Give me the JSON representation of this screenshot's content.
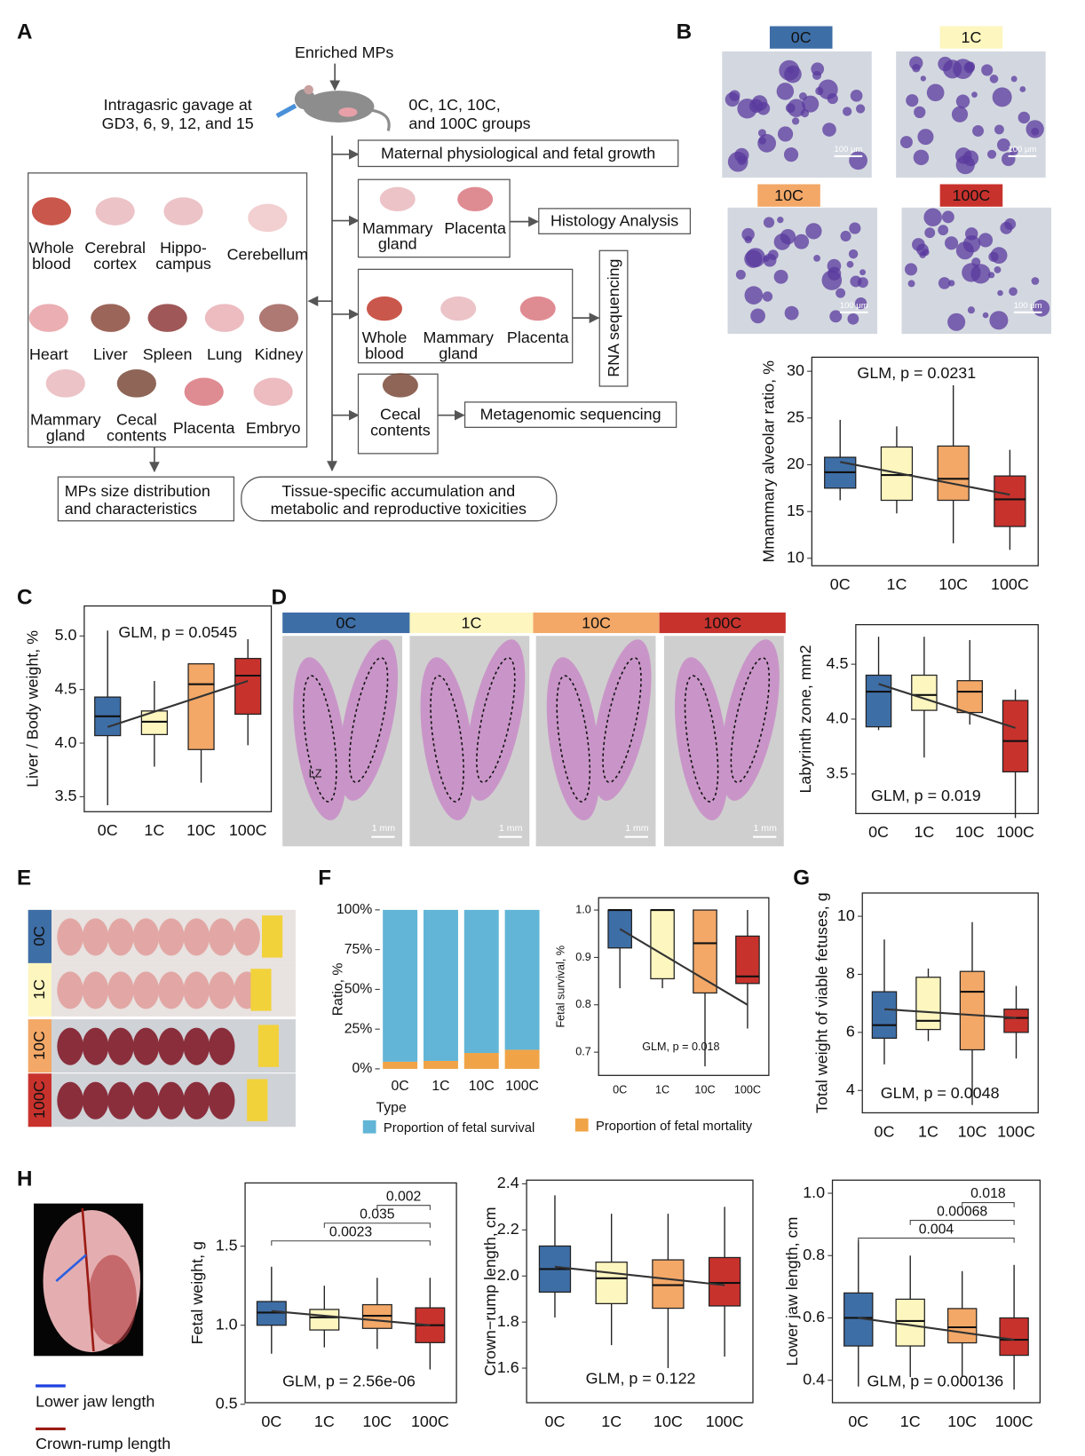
{
  "panel_labels": [
    "A",
    "B",
    "C",
    "D",
    "E",
    "F",
    "G",
    "H"
  ],
  "flow": {
    "input": "Enriched MPs",
    "dosing": [
      "Intragasric gavage at",
      "GD3, 6, 9, 12, and 15"
    ],
    "groups": [
      "0C, 1C, 10C,",
      "and 100C groups"
    ],
    "maternal": "Maternal physiological and fetal growth",
    "tissues": [
      [
        "Whole",
        "blood"
      ],
      [
        "Cerebral",
        "cortex"
      ],
      [
        "Hippo-",
        "campus"
      ],
      [
        "Cerebellum"
      ],
      [
        "Heart"
      ],
      [
        "Liver"
      ],
      [
        "Spleen"
      ],
      [
        "Lung"
      ],
      [
        "Kidney"
      ],
      [
        "Mammary",
        "gland"
      ],
      [
        "Cecal",
        "contents"
      ],
      [
        "Placenta"
      ],
      [
        "Embryo"
      ]
    ],
    "histology_tissues": [
      [
        "Mammary",
        "gland"
      ],
      [
        "Placenta"
      ]
    ],
    "histology": "Histology Analysis",
    "rna_tissues": [
      [
        "Whole",
        "blood"
      ],
      [
        "Mammary",
        "gland"
      ],
      [
        "Placenta"
      ]
    ],
    "rna": "RNA sequencing",
    "meta_tissues": [
      [
        "Cecal",
        "contents"
      ]
    ],
    "meta": "Metagenomic sequencing",
    "size": [
      "MPs size distribution",
      "and characteristics"
    ],
    "tox": [
      "Tissue-specific accumulation and",
      "metabolic and reproductive toxicities"
    ]
  },
  "micrographs": {
    "groups": [
      "0C",
      "1C",
      "10C",
      "100C"
    ],
    "scale_bar": "100 μm"
  },
  "placenta": {
    "groups": [
      "0C",
      "1C",
      "10C",
      "100C"
    ],
    "zone": "LZ",
    "scale_bar": "1 mm"
  },
  "litters": {
    "groups": [
      "0C",
      "1C",
      "10C",
      "100C"
    ]
  },
  "embryo": {
    "legend": [
      "Lower jaw length",
      "Crown-rump length"
    ]
  },
  "group_colors": [
    "#3e6ea6",
    "#fdf6bf",
    "#f3a868",
    "#c8322d"
  ],
  "chart_data": [
    {
      "type": "box",
      "ylabel": "Mmammary alveolar ratio, %",
      "categories": [
        "0C",
        "1C",
        "10C",
        "100C"
      ],
      "boxes": [
        [
          16.2,
          17.5,
          19.2,
          20.8,
          24.8
        ],
        [
          14.8,
          16.2,
          18.9,
          21.9,
          24.1
        ],
        [
          11.6,
          16.2,
          18.5,
          22.0,
          28.5
        ],
        [
          10.9,
          13.4,
          16.3,
          18.8,
          21.6
        ]
      ],
      "trend": [
        20.3,
        16.8
      ],
      "annotation": "GLM, p = 0.0231",
      "ylim": [
        9.2,
        31.5
      ],
      "yticks": [
        10,
        15,
        20,
        25,
        30
      ]
    },
    {
      "type": "box",
      "ylabel": "Liver / Body weight, %",
      "categories": [
        "0C",
        "1C",
        "10C",
        "100C"
      ],
      "boxes": [
        [
          3.42,
          4.07,
          4.25,
          4.43,
          5.05
        ],
        [
          3.78,
          4.08,
          4.2,
          4.3,
          4.58
        ],
        [
          3.63,
          3.94,
          4.55,
          4.74,
          4.74
        ],
        [
          3.98,
          4.27,
          4.63,
          4.79,
          4.97
        ]
      ],
      "trend": [
        4.15,
        4.58
      ],
      "annotation": "GLM, p = 0.0545",
      "ylim": [
        3.36,
        5.28
      ],
      "yticks": [
        {
          "value": 3.5,
          "label": "3.5"
        },
        {
          "value": 4,
          "label": "4.0"
        },
        {
          "value": 4.5,
          "label": "4.5"
        },
        {
          "value": 5,
          "label": "5.0"
        }
      ]
    },
    {
      "type": "box",
      "ylabel": "Labyrinth zone, mm2",
      "categories": [
        "0C",
        "1C",
        "10C",
        "100C"
      ],
      "boxes": [
        [
          3.9,
          3.93,
          4.25,
          4.4,
          4.75
        ],
        [
          3.65,
          4.08,
          4.22,
          4.4,
          4.75
        ],
        [
          3.95,
          4.06,
          4.25,
          4.35,
          4.72
        ],
        [
          3.1,
          3.52,
          3.8,
          4.17,
          4.27
        ]
      ],
      "trend": [
        4.32,
        3.92
      ],
      "annotation": "GLM, p = 0.019",
      "ylim": [
        3.14,
        4.86
      ],
      "yticks": [
        {
          "value": 3.5,
          "label": "3.5"
        },
        {
          "value": 4,
          "label": "4.0"
        },
        {
          "value": 4.5,
          "label": "4.5"
        }
      ]
    },
    {
      "type": "stacked_bar",
      "ylabel": "Ratio, %",
      "xlabel": "Type",
      "categories": [
        "0C",
        "1C",
        "10C",
        "100C"
      ],
      "series": [
        {
          "name": "Proportion of fetal survival",
          "color": "#62b5d6",
          "values": [
            95.5,
            95,
            90,
            88
          ]
        },
        {
          "name": "Proportion of fetal mortality",
          "color": "#f0a447",
          "values": [
            4.5,
            5,
            10,
            12
          ]
        }
      ],
      "ylim": [
        0,
        100
      ],
      "yticks": [
        {
          "value": 0,
          "label": "0%"
        },
        {
          "value": 25,
          "label": "25%"
        },
        {
          "value": 50,
          "label": "50%"
        },
        {
          "value": 75,
          "label": "75%"
        },
        {
          "value": 100,
          "label": "100%"
        }
      ]
    },
    {
      "type": "box",
      "ylabel": "Fetal survival, %",
      "categories": [
        "0C",
        "1C",
        "10C",
        "100C"
      ],
      "boxes": [
        [
          0.835,
          0.92,
          1,
          1,
          1
        ],
        [
          0.835,
          0.855,
          1,
          1,
          1
        ],
        [
          0.67,
          0.825,
          0.93,
          1,
          1
        ],
        [
          0.75,
          0.845,
          0.86,
          0.945,
          1
        ]
      ],
      "trend": [
        0.96,
        0.8
      ],
      "annotation": "GLM, p = 0.018",
      "ylim": [
        0.651,
        1.026
      ],
      "yticks": [
        0.7,
        0.8,
        0.9,
        {
          "value": 1,
          "label": "1.0"
        }
      ]
    },
    {
      "type": "box",
      "ylabel": "Total weight of viable fetuses, g",
      "categories": [
        "0C",
        "1C",
        "10C",
        "100C"
      ],
      "boxes": [
        [
          4.9,
          5.8,
          6.25,
          7.4,
          9.2
        ],
        [
          5.7,
          6.1,
          6.4,
          7.9,
          8.2
        ],
        [
          3.5,
          5.4,
          7.4,
          8.1,
          9.8
        ],
        [
          5.1,
          6.0,
          6.5,
          6.8,
          7.6
        ]
      ],
      "trend": [
        6.8,
        6.5
      ],
      "annotation": "GLM, p = 0.0048",
      "ylim": [
        3.23,
        10.8
      ],
      "yticks": [
        4,
        6,
        8,
        10
      ]
    },
    {
      "type": "box",
      "ylabel": "Fetal weight, g",
      "categories": [
        "0C",
        "1C",
        "10C",
        "100C"
      ],
      "boxes": [
        [
          0.82,
          1.0,
          1.08,
          1.15,
          1.37
        ],
        [
          0.86,
          0.97,
          1.05,
          1.1,
          1.25
        ],
        [
          0.85,
          0.98,
          1.06,
          1.13,
          1.3
        ],
        [
          0.72,
          0.89,
          1.0,
          1.11,
          1.3
        ]
      ],
      "trend": [
        1.09,
        1.0
      ],
      "annotation": "GLM, p = 2.56e-06",
      "comparisons": [
        0.002,
        0.035,
        0.0023
      ],
      "ylim": [
        0.51,
        1.9
      ],
      "yticks": [
        0.5,
        {
          "value": 1,
          "label": "1.0"
        },
        1.5
      ]
    },
    {
      "type": "box",
      "ylabel": "Crown−rump length, cm",
      "categories": [
        "0C",
        "1C",
        "10C",
        "100C"
      ],
      "boxes": [
        [
          1.82,
          1.93,
          2.03,
          2.13,
          2.35
        ],
        [
          1.7,
          1.88,
          1.99,
          2.06,
          2.27
        ],
        [
          1.6,
          1.86,
          1.96,
          2.07,
          2.27
        ],
        [
          1.65,
          1.87,
          1.97,
          2.08,
          2.3
        ]
      ],
      "trend": [
        2.04,
        1.96
      ],
      "annotation": "GLM, p = 0.122",
      "ylim": [
        1.45,
        2.416
      ],
      "yticks": [
        1.6,
        1.8,
        {
          "value": 2,
          "label": "2.0"
        },
        2.2,
        2.4
      ]
    },
    {
      "type": "box",
      "ylabel": "Lower jaw length, cm",
      "categories": [
        "0C",
        "1C",
        "10C",
        "100C"
      ],
      "boxes": [
        [
          0.38,
          0.51,
          0.6,
          0.68,
          0.85
        ],
        [
          0.41,
          0.51,
          0.59,
          0.66,
          0.8
        ],
        [
          0.41,
          0.52,
          0.57,
          0.63,
          0.75
        ],
        [
          0.37,
          0.48,
          0.53,
          0.6,
          0.77
        ]
      ],
      "trend": [
        0.6,
        0.53
      ],
      "annotation": "GLM, p = 0.000136",
      "comparisons": [
        0.018,
        0.00068,
        0.004
      ],
      "ylim": [
        0.328,
        1.042
      ],
      "yticks": [
        0.4,
        0.6,
        0.8,
        {
          "value": 1,
          "label": "1.0"
        }
      ]
    }
  ]
}
